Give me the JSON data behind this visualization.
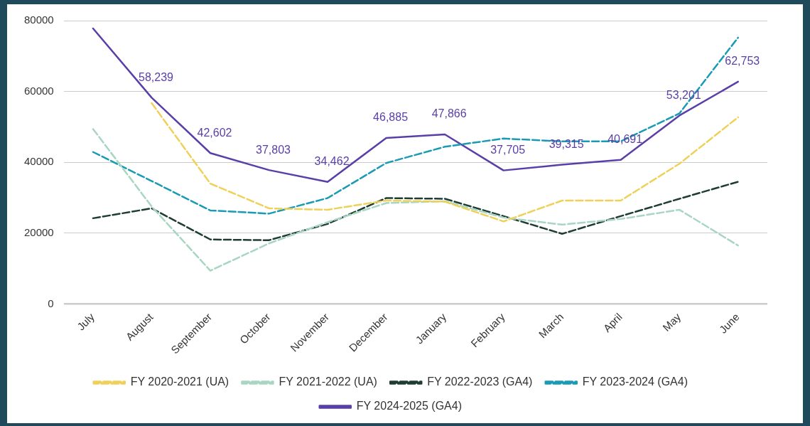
{
  "chart_data": {
    "type": "line",
    "categories": [
      "July",
      "August",
      "September",
      "October",
      "November",
      "December",
      "January",
      "February",
      "March",
      "April",
      "May",
      "June"
    ],
    "ylim": [
      0,
      80000
    ],
    "yticks": [
      0,
      20000,
      40000,
      60000,
      80000
    ],
    "grid": "y",
    "legend": "bottom",
    "marker": "none",
    "series": [
      {
        "name": "FY 2020-2021 (UA)",
        "color": "#efd15a",
        "line_style": "dashed",
        "values": [
          null,
          56700,
          34000,
          27000,
          26600,
          29200,
          28900,
          23300,
          29200,
          29200,
          39600,
          52700
        ]
      },
      {
        "name": "FY 2021-2022 (UA)",
        "color": "#a9d6c2",
        "line_style": "dashed",
        "values": [
          49400,
          27500,
          9400,
          17100,
          23100,
          28500,
          29000,
          24400,
          22400,
          24000,
          26600,
          16500
        ]
      },
      {
        "name": "FY 2022-2023 (GA4)",
        "color": "#1f3d33",
        "line_style": "dashed",
        "values": [
          24200,
          27000,
          18200,
          18000,
          22600,
          29900,
          29700,
          24800,
          19800,
          24800,
          29700,
          34500
        ]
      },
      {
        "name": "FY 2023-2024 (GA4)",
        "color": "#1a9bb5",
        "line_style": "dashed",
        "values": [
          42900,
          34700,
          26400,
          25500,
          29900,
          39800,
          44400,
          46700,
          45900,
          45900,
          53800,
          75200
        ]
      },
      {
        "name": "FY 2024-2025 (GA4)",
        "color": "#5b3fa8",
        "line_style": "solid",
        "values": [
          77800,
          58239,
          42602,
          37803,
          34462,
          46885,
          47866,
          37705,
          39315,
          40691,
          53201,
          62753
        ],
        "value_labels": [
          null,
          "58,239",
          "42,602",
          "37,803",
          "34,462",
          "46,885",
          "47,866",
          "37,705",
          "39,315",
          "40,691",
          "53,201",
          "62,753"
        ]
      }
    ]
  }
}
